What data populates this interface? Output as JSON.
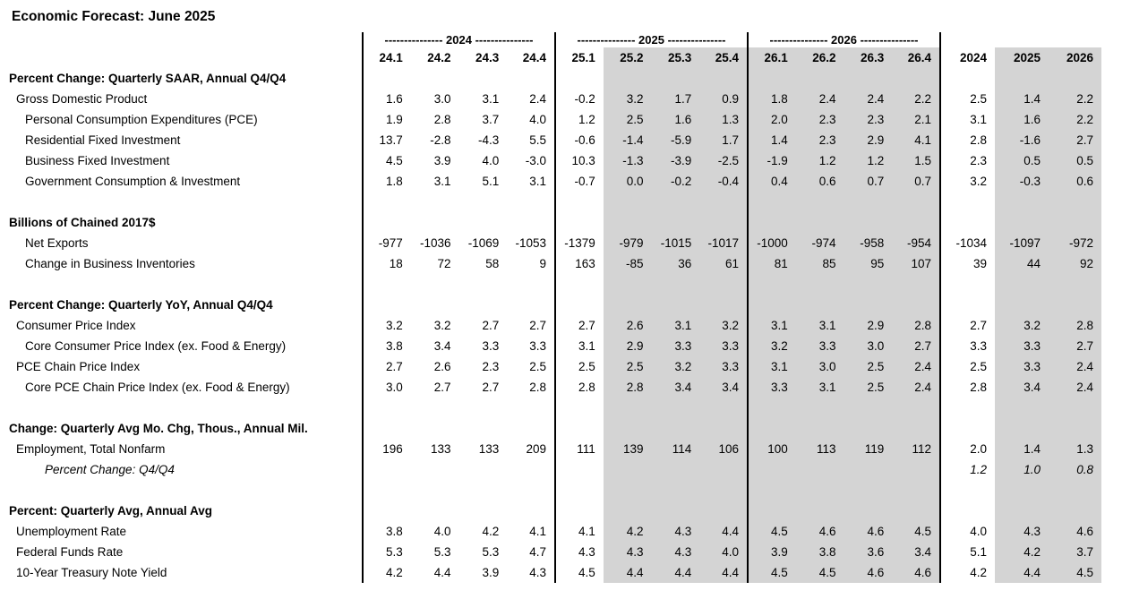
{
  "title": "Economic Forecast: June 2025",
  "colors": {
    "shaded_fill": "#d4d4d4",
    "line": "#000000",
    "text": "#000000",
    "background": "#ffffff"
  },
  "table": {
    "year_group_headers": [
      "--------------- 2024 ---------------",
      "--------------- 2025 ---------------",
      "--------------- 2026 ---------------"
    ],
    "quarter_headers": [
      "24.1",
      "24.2",
      "24.3",
      "24.4",
      "25.1",
      "25.2",
      "25.3",
      "25.4",
      "26.1",
      "26.2",
      "26.3",
      "26.4"
    ],
    "annual_headers": [
      "2024",
      "2025",
      "2026"
    ],
    "shaded_value_columns": [
      5,
      6,
      7,
      8,
      9,
      10,
      11,
      13,
      14
    ],
    "sections": [
      {
        "header": "Percent Change: Quarterly SAAR, Annual Q4/Q4",
        "rows": [
          {
            "label": "Gross Domestic Product",
            "indent": 1,
            "italic": false,
            "values": [
              "1.6",
              "3.0",
              "3.1",
              "2.4",
              "-0.2",
              "3.2",
              "1.7",
              "0.9",
              "1.8",
              "2.4",
              "2.4",
              "2.2",
              "2.5",
              "1.4",
              "2.2"
            ]
          },
          {
            "label": "Personal Consumption Expenditures (PCE)",
            "indent": 2,
            "italic": false,
            "values": [
              "1.9",
              "2.8",
              "3.7",
              "4.0",
              "1.2",
              "2.5",
              "1.6",
              "1.3",
              "2.0",
              "2.3",
              "2.3",
              "2.1",
              "3.1",
              "1.6",
              "2.2"
            ]
          },
          {
            "label": "Residential Fixed Investment",
            "indent": 2,
            "italic": false,
            "values": [
              "13.7",
              "-2.8",
              "-4.3",
              "5.5",
              "-0.6",
              "-1.4",
              "-5.9",
              "1.7",
              "1.4",
              "2.3",
              "2.9",
              "4.1",
              "2.8",
              "-1.6",
              "2.7"
            ]
          },
          {
            "label": "Business Fixed Investment",
            "indent": 2,
            "italic": false,
            "values": [
              "4.5",
              "3.9",
              "4.0",
              "-3.0",
              "10.3",
              "-1.3",
              "-3.9",
              "-2.5",
              "-1.9",
              "1.2",
              "1.2",
              "1.5",
              "2.3",
              "0.5",
              "0.5"
            ]
          },
          {
            "label": "Government Consumption & Investment",
            "indent": 2,
            "italic": false,
            "values": [
              "1.8",
              "3.1",
              "5.1",
              "3.1",
              "-0.7",
              "0.0",
              "-0.2",
              "-0.4",
              "0.4",
              "0.6",
              "0.7",
              "0.7",
              "3.2",
              "-0.3",
              "0.6"
            ]
          }
        ]
      },
      {
        "header": "Billions of Chained 2017$",
        "rows": [
          {
            "label": "Net Exports",
            "indent": 2,
            "italic": false,
            "values": [
              "-977",
              "-1036",
              "-1069",
              "-1053",
              "-1379",
              "-979",
              "-1015",
              "-1017",
              "-1000",
              "-974",
              "-958",
              "-954",
              "-1034",
              "-1097",
              "-972"
            ]
          },
          {
            "label": "Change in Business Inventories",
            "indent": 2,
            "italic": false,
            "values": [
              "18",
              "72",
              "58",
              "9",
              "163",
              "-85",
              "36",
              "61",
              "81",
              "85",
              "95",
              "107",
              "39",
              "44",
              "92"
            ]
          }
        ]
      },
      {
        "header": "Percent Change: Quarterly YoY, Annual Q4/Q4",
        "rows": [
          {
            "label": "Consumer Price Index",
            "indent": 1,
            "italic": false,
            "values": [
              "3.2",
              "3.2",
              "2.7",
              "2.7",
              "2.7",
              "2.6",
              "3.1",
              "3.2",
              "3.1",
              "3.1",
              "2.9",
              "2.8",
              "2.7",
              "3.2",
              "2.8"
            ]
          },
          {
            "label": "Core Consumer Price Index (ex. Food & Energy)",
            "indent": 2,
            "italic": false,
            "values": [
              "3.8",
              "3.4",
              "3.3",
              "3.3",
              "3.1",
              "2.9",
              "3.3",
              "3.3",
              "3.2",
              "3.3",
              "3.0",
              "2.7",
              "3.3",
              "3.3",
              "2.7"
            ]
          },
          {
            "label": "PCE Chain Price Index",
            "indent": 1,
            "italic": false,
            "values": [
              "2.7",
              "2.6",
              "2.3",
              "2.5",
              "2.5",
              "2.5",
              "3.2",
              "3.3",
              "3.1",
              "3.0",
              "2.5",
              "2.4",
              "2.5",
              "3.3",
              "2.4"
            ]
          },
          {
            "label": "Core PCE Chain Price Index (ex. Food & Energy)",
            "indent": 2,
            "italic": false,
            "values": [
              "3.0",
              "2.7",
              "2.7",
              "2.8",
              "2.8",
              "2.8",
              "3.4",
              "3.4",
              "3.3",
              "3.1",
              "2.5",
              "2.4",
              "2.8",
              "3.4",
              "2.4"
            ]
          }
        ]
      },
      {
        "header": "Change: Quarterly Avg Mo. Chg, Thous., Annual Mil.",
        "rows": [
          {
            "label": "Employment, Total Nonfarm",
            "indent": 1,
            "italic": false,
            "values": [
              "196",
              "133",
              "133",
              "209",
              "111",
              "139",
              "114",
              "106",
              "100",
              "113",
              "119",
              "112",
              "2.0",
              "1.4",
              "1.3"
            ]
          },
          {
            "label": "Percent Change: Q4/Q4",
            "indent": 3,
            "italic": true,
            "values": [
              "",
              "",
              "",
              "",
              "",
              "",
              "",
              "",
              "",
              "",
              "",
              "",
              "1.2",
              "1.0",
              "0.8"
            ]
          }
        ]
      },
      {
        "header": "Percent: Quarterly Avg, Annual Avg",
        "rows": [
          {
            "label": "Unemployment Rate",
            "indent": 1,
            "italic": false,
            "values": [
              "3.8",
              "4.0",
              "4.2",
              "4.1",
              "4.1",
              "4.2",
              "4.3",
              "4.4",
              "4.5",
              "4.6",
              "4.6",
              "4.5",
              "4.0",
              "4.3",
              "4.6"
            ]
          },
          {
            "label": "Federal Funds Rate",
            "indent": 1,
            "italic": false,
            "values": [
              "5.3",
              "5.3",
              "5.3",
              "4.7",
              "4.3",
              "4.3",
              "4.3",
              "4.0",
              "3.9",
              "3.8",
              "3.6",
              "3.4",
              "5.1",
              "4.2",
              "3.7"
            ]
          },
          {
            "label": "10-Year Treasury Note Yield",
            "indent": 1,
            "italic": false,
            "values": [
              "4.2",
              "4.4",
              "3.9",
              "4.3",
              "4.5",
              "4.4",
              "4.4",
              "4.4",
              "4.5",
              "4.5",
              "4.6",
              "4.6",
              "4.2",
              "4.4",
              "4.5"
            ]
          }
        ]
      }
    ]
  }
}
